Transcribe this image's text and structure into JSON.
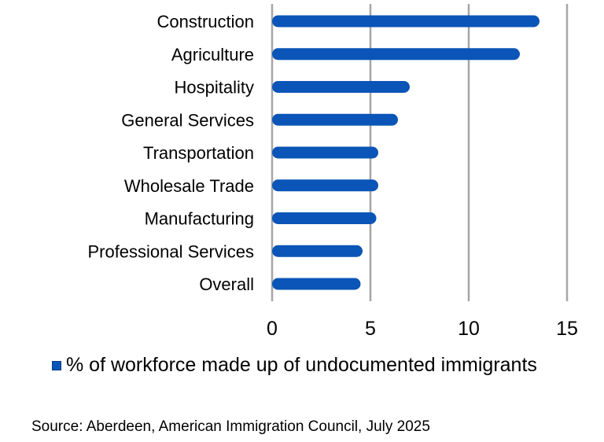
{
  "chart_data": {
    "type": "bar",
    "orientation": "horizontal",
    "categories": [
      "Construction",
      "Agriculture",
      "Hospitality",
      "General Services",
      "Transportation",
      "Wholesale Trade",
      "Manufacturing",
      "Professional Services",
      "Overall"
    ],
    "series": [
      {
        "name": "% of workforce made up of undocumented immigrants",
        "values": [
          13.6,
          12.6,
          7.0,
          6.4,
          5.4,
          5.4,
          5.3,
          4.6,
          4.5
        ],
        "color": "#0a55b7"
      }
    ],
    "xlim": [
      0,
      15
    ],
    "xticks": [
      "0",
      "5",
      "10",
      "15"
    ],
    "grid": "vertical",
    "legend_position": "bottom"
  },
  "source": "Source: Aberdeen, American Immigration Council, July 2025"
}
